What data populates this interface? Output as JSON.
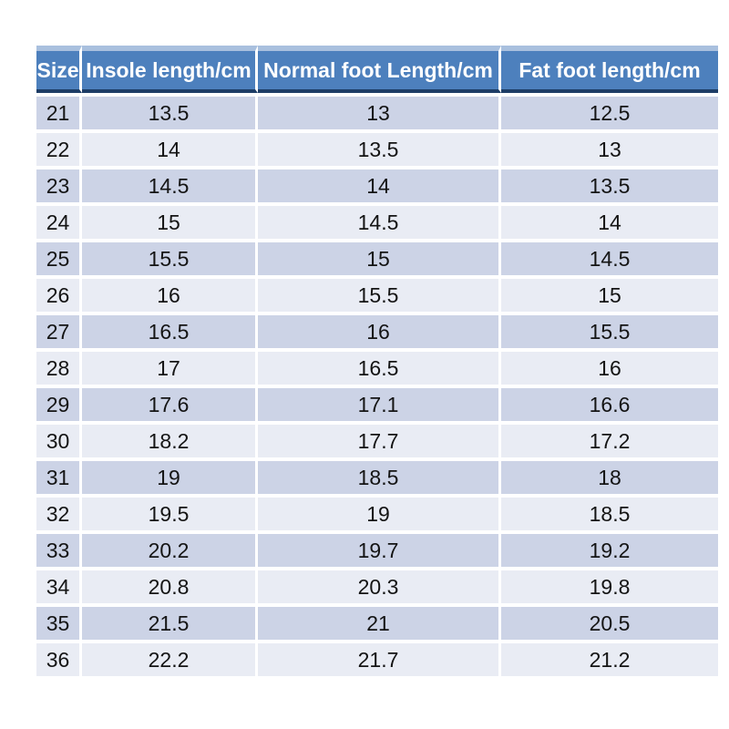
{
  "chart_data": {
    "type": "table",
    "title": "",
    "columns": [
      "Size",
      "Insole length/cm",
      "Normal foot Length/cm",
      "Fat foot length/cm"
    ],
    "rows": [
      [
        21,
        13.5,
        13,
        12.5
      ],
      [
        22,
        14,
        13.5,
        13
      ],
      [
        23,
        14.5,
        14,
        13.5
      ],
      [
        24,
        15,
        14.5,
        14
      ],
      [
        25,
        15.5,
        15,
        14.5
      ],
      [
        26,
        16,
        15.5,
        15
      ],
      [
        27,
        16.5,
        16,
        15.5
      ],
      [
        28,
        17,
        16.5,
        16
      ],
      [
        29,
        17.6,
        17.1,
        16.6
      ],
      [
        30,
        18.2,
        17.7,
        17.2
      ],
      [
        31,
        19,
        18.5,
        18
      ],
      [
        32,
        19.5,
        19,
        18.5
      ],
      [
        33,
        20.2,
        19.7,
        19.2
      ],
      [
        34,
        20.8,
        20.3,
        19.8
      ],
      [
        35,
        21.5,
        21,
        20.5
      ],
      [
        36,
        22.2,
        21.7,
        21.2
      ]
    ],
    "layout": {
      "header_position": "top",
      "banded_rows": true,
      "cell_text_align": "center"
    }
  },
  "colors": {
    "page_bg": "#ffffff",
    "header_bg": "#4d80bd",
    "header_text": "#ffffff",
    "header_top_border": "#a9c0de",
    "header_bottom_border": "#1d3d66",
    "row_band_dark": "#ccd3e6",
    "row_band_light": "#e9ecf4",
    "body_text": "#141414"
  }
}
